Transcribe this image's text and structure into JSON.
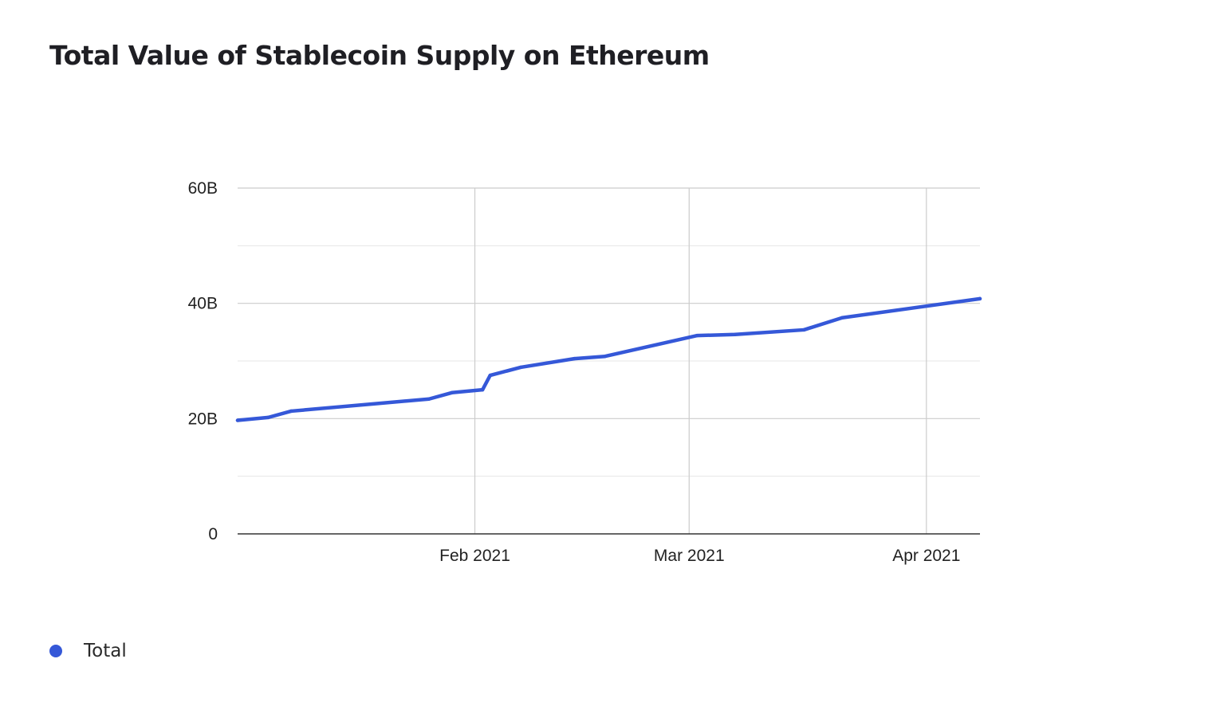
{
  "title": "Total Value of Stablecoin Supply on Ethereum",
  "colors": {
    "series": "#3558d8",
    "grid": "#d9d9d9",
    "axis": "#333333",
    "text": "#222222"
  },
  "legend": {
    "position": "bottom-left",
    "items": [
      {
        "label": "Total",
        "color": "#3558d8"
      }
    ]
  },
  "chart_data": {
    "type": "line",
    "title": "Total Value of Stablecoin Supply on Ethereum",
    "xlabel": "",
    "ylabel": "",
    "grid": true,
    "xlim": [
      "2021-01-01",
      "2021-04-08"
    ],
    "ylim": [
      0,
      60
    ],
    "y_unit": "B",
    "yticks": [
      {
        "value": 0,
        "label": "0"
      },
      {
        "value": 20,
        "label": "20B"
      },
      {
        "value": 40,
        "label": "40B"
      },
      {
        "value": 60,
        "label": "60B"
      }
    ],
    "xticks": [
      {
        "value": "2021-02-01",
        "label": "Feb 2021"
      },
      {
        "value": "2021-03-01",
        "label": "Mar 2021"
      },
      {
        "value": "2021-04-01",
        "label": "Apr 2021"
      }
    ],
    "series": [
      {
        "name": "Total",
        "x": [
          "2021-01-01",
          "2021-01-05",
          "2021-01-08",
          "2021-01-26",
          "2021-01-29",
          "2021-02-02",
          "2021-02-03",
          "2021-02-07",
          "2021-02-14",
          "2021-02-18",
          "2021-03-02",
          "2021-03-07",
          "2021-03-16",
          "2021-03-21",
          "2021-04-08"
        ],
        "values": [
          19.7,
          20.2,
          21.3,
          23.4,
          24.5,
          25.0,
          27.5,
          28.9,
          30.4,
          30.8,
          34.4,
          34.6,
          35.4,
          37.5,
          40.8
        ]
      }
    ]
  }
}
